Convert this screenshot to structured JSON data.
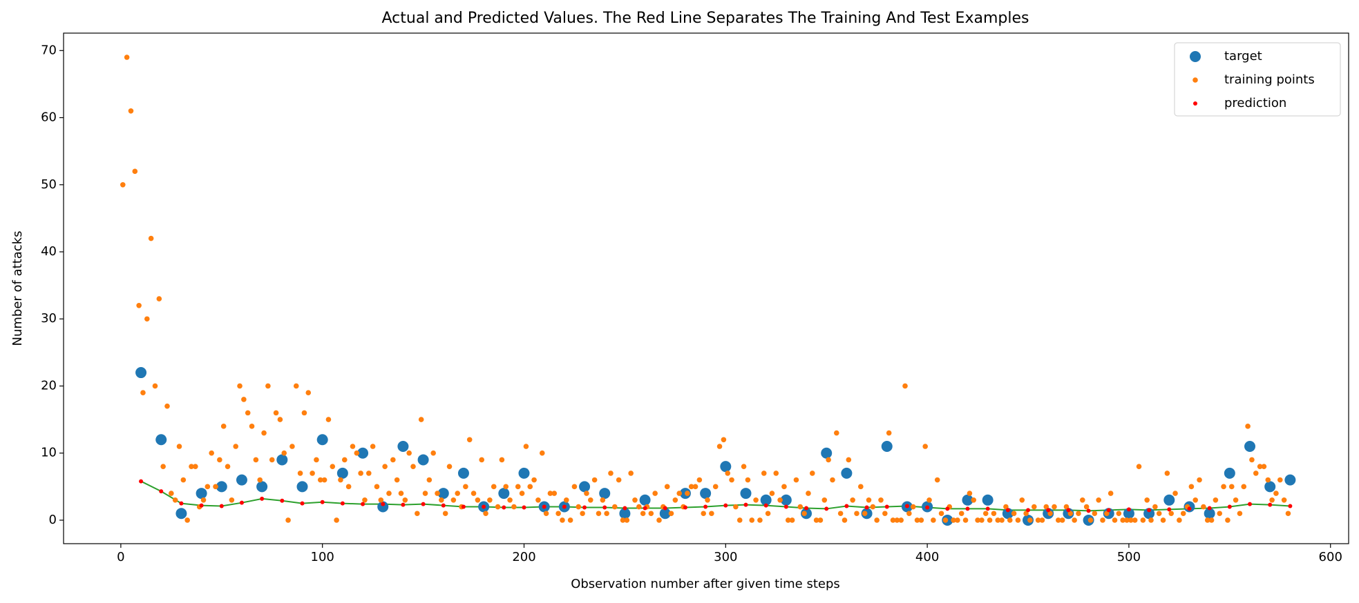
{
  "chart_data": {
    "type": "scatter",
    "title": "Actual and Predicted Values. The Red Line Separates The Training And Test Examples",
    "x_label": "Observation number after given time steps",
    "y_label": "Number of attacks",
    "xlim": [
      -28.4,
      609
    ],
    "ylim": [
      -3.5,
      72.6
    ],
    "xticks": [
      0,
      100,
      200,
      300,
      400,
      500,
      600
    ],
    "yticks": [
      0,
      10,
      20,
      30,
      40,
      50,
      60,
      70
    ],
    "grid": false,
    "legend": "upper right",
    "series": [
      {
        "name": "target",
        "color": "#1f77b4",
        "marker_size": 8,
        "x": [
          10,
          20,
          30,
          40,
          50,
          60,
          70,
          80,
          90,
          100,
          110,
          120,
          130,
          140,
          150,
          160,
          170,
          180,
          190,
          200,
          210,
          220,
          230,
          240,
          250,
          260,
          270,
          280,
          290,
          300,
          310,
          320,
          330,
          340,
          350,
          360,
          370,
          380,
          390,
          400,
          410,
          420,
          430,
          440,
          450,
          460,
          470,
          480,
          490,
          500,
          510,
          520,
          530,
          540,
          550,
          560,
          570,
          580
        ],
        "values": [
          22,
          12,
          1,
          4,
          5,
          6,
          5,
          9,
          5,
          12,
          7,
          10,
          2,
          11,
          9,
          4,
          7,
          2,
          4,
          7,
          2,
          2,
          5,
          4,
          1,
          3,
          1,
          4,
          4,
          8,
          4,
          3,
          3,
          1,
          10,
          7,
          1,
          11,
          2,
          2,
          0,
          3,
          3,
          1,
          0,
          1,
          1,
          0,
          1,
          1,
          1,
          3,
          2,
          1,
          7,
          11,
          5,
          6
        ]
      },
      {
        "name": "training points",
        "color": "#ff7f0e",
        "marker_size": 3.8,
        "x": [
          1,
          3,
          5,
          7,
          9,
          11,
          13,
          15,
          17,
          19,
          21,
          23,
          25,
          27,
          29,
          31,
          33,
          35,
          37,
          39,
          41,
          43,
          45,
          47,
          49,
          51,
          53,
          55,
          57,
          59,
          61,
          63,
          65,
          67,
          69,
          71,
          73,
          75,
          77,
          79,
          81,
          83,
          85,
          87,
          89,
          91,
          93,
          95,
          97,
          99,
          101,
          103,
          105,
          107,
          109,
          111,
          113,
          115,
          117,
          119,
          121,
          123,
          125,
          127,
          129,
          131,
          133,
          135,
          137,
          139,
          141,
          143,
          145,
          147,
          149,
          151,
          153,
          155,
          157,
          159,
          161,
          163,
          165,
          167,
          169,
          171,
          173,
          175,
          177,
          179,
          181,
          183,
          185,
          187,
          189,
          191,
          193,
          195,
          197,
          199,
          201,
          203,
          205,
          207,
          209,
          211,
          213,
          215,
          217,
          219,
          221,
          223,
          225,
          227,
          229,
          231,
          233,
          235,
          237,
          239,
          241,
          243,
          245,
          247,
          249,
          251,
          253,
          255,
          257,
          259,
          261,
          263,
          265,
          267,
          269,
          271,
          273,
          275,
          277,
          279,
          281,
          283,
          285,
          287,
          289,
          291,
          293,
          295,
          297,
          299,
          301,
          303,
          305,
          307,
          309,
          311,
          313,
          315,
          317,
          319,
          321,
          323,
          325,
          327,
          329,
          331,
          333,
          335,
          337,
          339,
          341,
          343,
          345,
          347,
          349,
          351,
          353,
          355,
          357,
          359,
          361,
          363,
          365,
          367,
          369,
          371,
          373,
          375,
          377,
          379,
          381,
          383,
          385,
          387,
          389,
          391,
          393,
          395,
          397,
          399,
          401,
          403,
          405,
          407,
          409,
          411,
          413,
          415,
          417,
          419,
          421,
          423,
          425,
          427,
          429,
          431,
          433,
          435,
          437,
          439,
          441,
          443,
          445,
          447,
          449,
          451,
          453,
          455,
          457,
          459,
          461,
          463,
          465,
          467,
          469,
          471,
          473,
          475,
          477,
          479,
          481,
          483,
          485,
          487,
          489,
          491,
          493,
          495,
          497,
          499,
          501,
          503,
          505,
          507,
          509,
          511,
          513,
          515,
          517,
          519,
          521,
          523,
          525,
          527,
          529,
          531,
          533,
          535,
          537,
          539,
          541,
          543,
          545,
          547,
          549,
          551,
          553,
          555,
          557,
          559,
          561,
          563,
          565,
          567,
          569,
          571,
          573,
          575,
          577,
          579
        ],
        "values": [
          50,
          69,
          61,
          52,
          32,
          19,
          30,
          42,
          20,
          33,
          8,
          17,
          4,
          3,
          11,
          6,
          0,
          8,
          8,
          2,
          3,
          5,
          10,
          5,
          9,
          14,
          8,
          3,
          11,
          20,
          18,
          16,
          14,
          9,
          6,
          13,
          20,
          9,
          16,
          15,
          10,
          0,
          11,
          20,
          7,
          16,
          19,
          7,
          9,
          6,
          6,
          15,
          8,
          0,
          6,
          9,
          5,
          11,
          10,
          7,
          3,
          7,
          11,
          5,
          3,
          8,
          4,
          9,
          6,
          4,
          3,
          10,
          8,
          1,
          15,
          4,
          6,
          10,
          4,
          3,
          1,
          8,
          3,
          4,
          2,
          5,
          12,
          4,
          3,
          9,
          1,
          3,
          5,
          2,
          9,
          5,
          3,
          2,
          5,
          4,
          11,
          5,
          6,
          3,
          10,
          1,
          4,
          4,
          1,
          0,
          3,
          0,
          5,
          2,
          1,
          4,
          3,
          6,
          1,
          3,
          1,
          7,
          2,
          6,
          0,
          0,
          7,
          3,
          2,
          1,
          2,
          1,
          4,
          0,
          2,
          5,
          1,
          3,
          4,
          2,
          4,
          5,
          5,
          6,
          1,
          3,
          1,
          5,
          11,
          12,
          7,
          6,
          2,
          0,
          8,
          6,
          0,
          3,
          0,
          7,
          1,
          4,
          7,
          3,
          5,
          0,
          0,
          6,
          2,
          1,
          4,
          7,
          0,
          0,
          3,
          9,
          6,
          13,
          1,
          0,
          9,
          3,
          1,
          5,
          1,
          3,
          2,
          0,
          3,
          1,
          13,
          0,
          0,
          0,
          20,
          1,
          2,
          0,
          0,
          11,
          3,
          0,
          6,
          1,
          0,
          2,
          0,
          0,
          1,
          0,
          4,
          3,
          0,
          0,
          1,
          0,
          1,
          0,
          0,
          2,
          0,
          1,
          0,
          3,
          1,
          0,
          2,
          0,
          0,
          2,
          1,
          2,
          0,
          0,
          2,
          1,
          0,
          1,
          3,
          2,
          0,
          1,
          3,
          0,
          1,
          4,
          0,
          1,
          0,
          0,
          0,
          0,
          8,
          0,
          3,
          0,
          2,
          1,
          0,
          7,
          1,
          4,
          0,
          1,
          2,
          5,
          3,
          6,
          2,
          0,
          0,
          3,
          1,
          5,
          0,
          5,
          3,
          1,
          5,
          14,
          9,
          7,
          8,
          8,
          6,
          3,
          4,
          6,
          3,
          1
        ]
      },
      {
        "name": "prediction",
        "color": "#ff0000",
        "marker_size": 3,
        "line_color": "#2ca02c",
        "x": [
          10,
          20,
          30,
          40,
          50,
          60,
          70,
          80,
          90,
          100,
          110,
          120,
          130,
          140,
          150,
          160,
          170,
          180,
          190,
          200,
          210,
          220,
          230,
          240,
          250,
          260,
          270,
          280,
          290,
          300,
          310,
          320,
          330,
          340,
          350,
          360,
          370,
          380,
          390,
          400,
          410,
          420,
          430,
          440,
          450,
          460,
          470,
          480,
          490,
          500,
          510,
          520,
          530,
          540,
          550,
          560,
          570,
          580
        ],
        "values": [
          5.8,
          4.3,
          2.5,
          2.2,
          2.1,
          2.6,
          3.2,
          2.9,
          2.5,
          2.7,
          2.5,
          2.4,
          2.4,
          2.3,
          2.4,
          2.2,
          2.0,
          2.0,
          1.9,
          1.9,
          2.0,
          2.0,
          1.9,
          1.9,
          1.8,
          1.8,
          1.8,
          1.9,
          2.0,
          2.2,
          2.3,
          2.2,
          2.0,
          1.8,
          1.7,
          2.1,
          1.9,
          2.0,
          2.1,
          1.9,
          1.7,
          1.7,
          1.7,
          1.5,
          1.5,
          1.5,
          1.5,
          1.4,
          1.5,
          1.6,
          1.5,
          1.6,
          1.7,
          1.8,
          2.0,
          2.4,
          2.3,
          2.1
        ]
      }
    ]
  }
}
